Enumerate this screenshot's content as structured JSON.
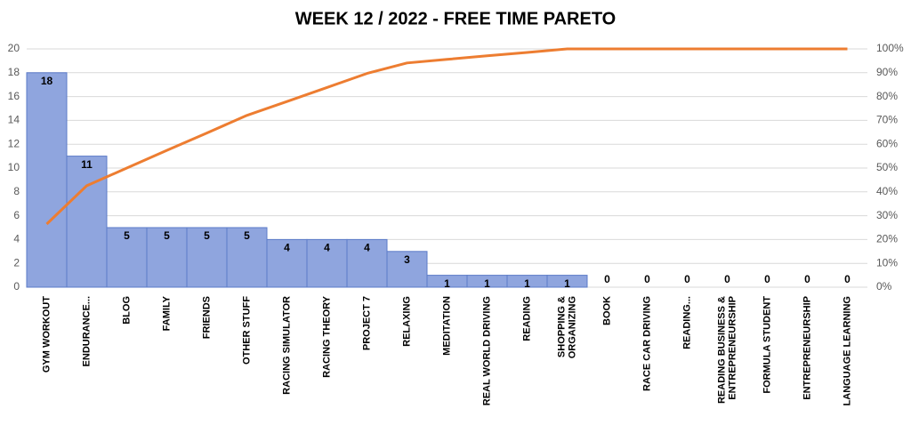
{
  "chart_data": {
    "type": "pareto",
    "title": "WEEK 12 / 2022 - FREE TIME PARETO",
    "categories": [
      "GYM WORKOUT",
      "ENDURANCE...",
      "BLOG",
      "FAMILY",
      "FRIENDS",
      "OTHER STUFF",
      "RACING SIMULATOR",
      "RACING THEORY",
      "PROJECT 7",
      "RELAXING",
      "MEDITATION",
      "REAL WORLD DRIVING",
      "READING",
      "SHOPPING & ORGANIZING",
      "BOOK",
      "RACE CAR DRIVING",
      "READING...",
      "READING BUSINESS & ENTREPRENEURSHIP",
      "FORMULA STUDENT",
      "ENTREPRENEURSHIP",
      "LANGUAGE LEARNING"
    ],
    "series": [
      {
        "values": [
          18,
          11,
          5,
          5,
          5,
          5,
          4,
          4,
          4,
          3,
          1,
          1,
          1,
          1,
          0,
          0,
          0,
          0,
          0,
          0,
          0
        ],
        "color": "#8fa5de"
      },
      {
        "values": [
          26.5,
          42.6,
          50,
          57.4,
          64.7,
          72.1,
          77.9,
          83.8,
          89.7,
          94.1,
          95.6,
          97.1,
          98.5,
          100,
          100,
          100,
          100,
          100,
          100,
          100,
          100
        ],
        "color": "#ed7d31",
        "axis": "y2"
      }
    ],
    "ylim": [
      0,
      20
    ],
    "yticks": [
      0,
      2,
      4,
      6,
      8,
      10,
      12,
      14,
      16,
      18,
      20
    ],
    "y2lim": [
      0,
      100
    ],
    "y2ticks": [
      {
        "value": 0,
        "label": "0%"
      },
      {
        "value": 10,
        "label": "10%"
      },
      {
        "value": 20,
        "label": "20%"
      },
      {
        "value": 30,
        "label": "30%"
      },
      {
        "value": 40,
        "label": "40%"
      },
      {
        "value": 50,
        "label": "50%"
      },
      {
        "value": 60,
        "label": "60%"
      },
      {
        "value": 70,
        "label": "70%"
      },
      {
        "value": 80,
        "label": "80%"
      },
      {
        "value": 90,
        "label": "90%"
      },
      {
        "value": 100,
        "label": "100%"
      }
    ],
    "grid": true
  }
}
